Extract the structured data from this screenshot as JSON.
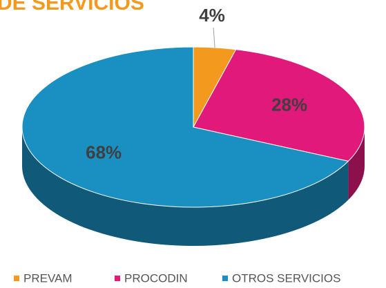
{
  "chart_data": {
    "type": "pie3d",
    "title": "DE SERVICIOS",
    "categories": [
      "PREVAM",
      "PROCODIN",
      "OTROS SERVICIOS"
    ],
    "values": [
      4,
      28,
      68
    ],
    "value_labels": [
      "4%",
      "28%",
      "68%"
    ],
    "colors": [
      "#f39a1e",
      "#e0197a",
      "#1a8fc2"
    ],
    "legend": "bottom"
  }
}
